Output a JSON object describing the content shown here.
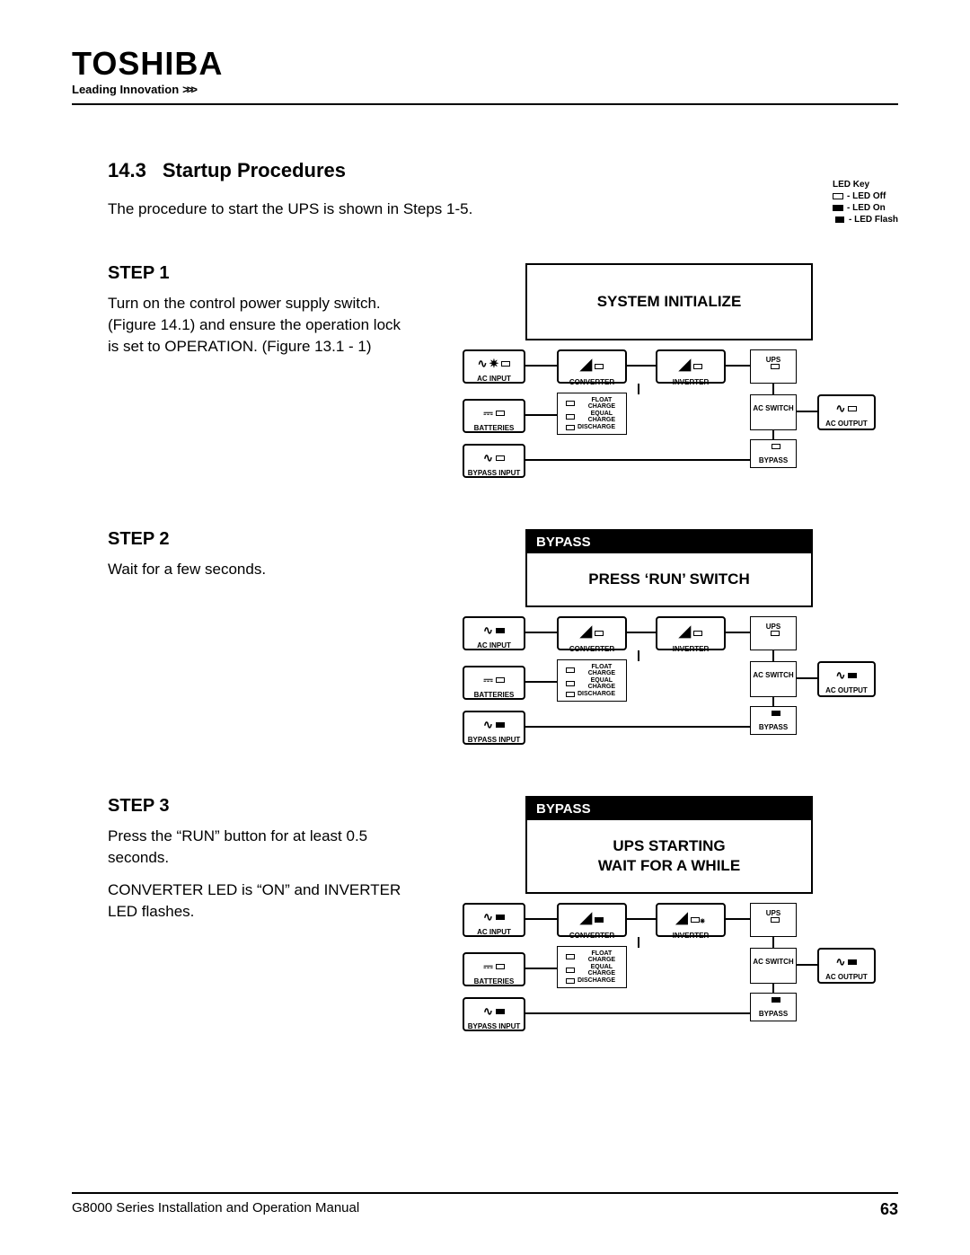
{
  "brand": {
    "logo": "TOSHIBA",
    "tagline": "Leading Innovation",
    "chev": ">>>"
  },
  "section": {
    "num": "14.3",
    "title": "Startup Procedures"
  },
  "intro": "The procedure to start the UPS is shown in Steps 1-5.",
  "ledkey": {
    "title": "LED Key",
    "off": "- LED Off",
    "on": "- LED On",
    "flash": "- LED Flash"
  },
  "steps": [
    {
      "h": "STEP 1",
      "body": "Turn on the control power supply switch. (Figure 14.1) and ensure the operation lock is set to OPERATION. (Figure 13.1 - 1)"
    },
    {
      "h": "STEP 2",
      "body": "Wait for a few seconds."
    },
    {
      "h": "STEP 3",
      "body": "Press the “RUN” button for at least 0.5 seconds.",
      "body2": "CONVERTER LED is “ON” and INVERTER LED flashes."
    }
  ],
  "displays": [
    {
      "bar": "",
      "body": "SYSTEM INITIALIZE",
      "tall": true
    },
    {
      "bar": "BYPASS",
      "body": "PRESS ‘RUN’ SWITCH"
    },
    {
      "bar": "BYPASS",
      "body": "UPS STARTING\nWAIT FOR A WHILE"
    }
  ],
  "diagram": {
    "labels": {
      "acin": "AC INPUT",
      "conv": "CONVERTER",
      "inv": "INVERTER",
      "ups": "UPS",
      "batt": "BATTERIES",
      "float": "FLOAT CHARGE",
      "equal": "EQUAL CHARGE",
      "disch": "DISCHARGE",
      "acsw": "AC\nSWITCH",
      "acout": "AC OUTPUT",
      "byin": "BYPASS INPUT",
      "bypass": "BYPASS"
    },
    "states": [
      {
        "acin_on": false,
        "conv_on": false,
        "inv_on": false,
        "ups_on": false,
        "batt_on": false,
        "float_on": false,
        "equal_on": false,
        "disch_on": false,
        "byin_on": false,
        "bypass_on": false,
        "acout_on": false,
        "acin_flash": true
      },
      {
        "acin_on": true,
        "conv_on": false,
        "inv_on": false,
        "ups_on": false,
        "batt_on": false,
        "float_on": false,
        "equal_on": false,
        "disch_on": false,
        "byin_on": true,
        "bypass_on": true,
        "acout_on": true
      },
      {
        "acin_on": true,
        "conv_on": true,
        "inv_on": false,
        "ups_on": false,
        "batt_on": false,
        "float_on": false,
        "equal_on": false,
        "disch_on": false,
        "byin_on": true,
        "bypass_on": true,
        "acout_on": true,
        "inv_flash": true
      }
    ]
  },
  "footer": {
    "manual": "G8000 Series Installation and Operation Manual",
    "page": "63"
  }
}
